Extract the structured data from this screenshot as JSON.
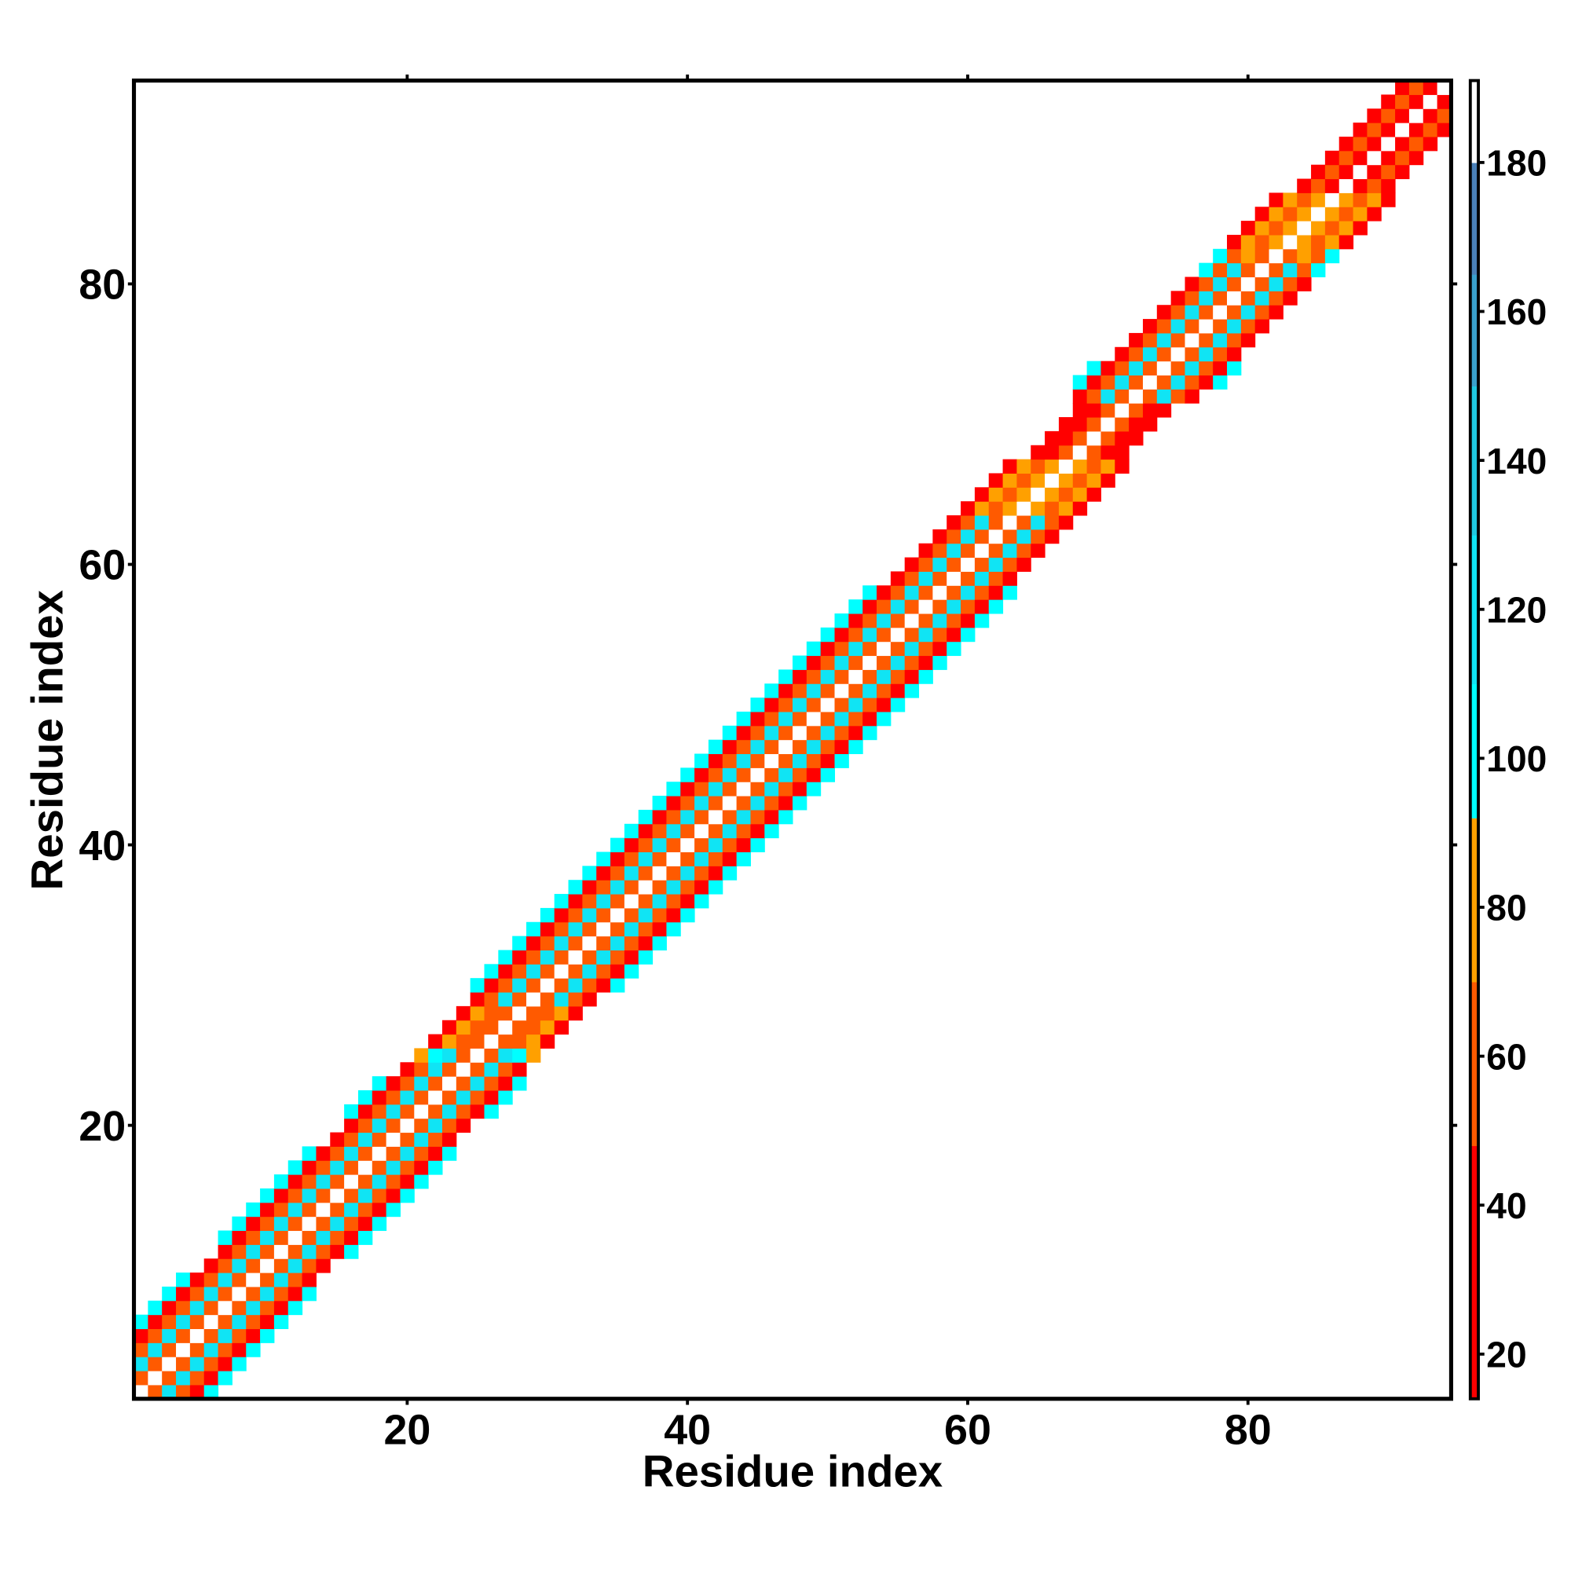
{
  "chart_data": {
    "type": "heatmap",
    "xlabel": "Residue index",
    "ylabel": "Residue index",
    "xlim": [
      0.5,
      94.5
    ],
    "ylim": [
      0.5,
      94.5
    ],
    "xticks": [
      20,
      40,
      60,
      80
    ],
    "yticks": [
      20,
      40,
      60,
      80
    ],
    "zlim": [
      14,
      191
    ],
    "zticks": [
      20,
      40,
      60,
      80,
      100,
      120,
      140,
      160,
      180
    ],
    "colorscale": [
      [
        14,
        "#ff0000"
      ],
      [
        48,
        "#ff5a00"
      ],
      [
        70,
        "#ffa000"
      ],
      [
        92,
        "#00ffff"
      ],
      [
        110,
        "#10e4f4"
      ],
      [
        130,
        "#20c8e0"
      ],
      [
        150,
        "#3aa0cc"
      ],
      [
        165,
        "#4a80b8"
      ],
      [
        180,
        "#ffffff"
      ]
    ],
    "z": [
      [
        null,
        null,
        null,
        null,
        null,
        185,
        55,
        110,
        55,
        30,
        100
      ],
      [
        null,
        null,
        null,
        null,
        55,
        185,
        55,
        110,
        55,
        30,
        100
      ],
      [
        null,
        null,
        null,
        110,
        55,
        185,
        55,
        110,
        55,
        30,
        100
      ],
      [
        null,
        null,
        55,
        110,
        55,
        185,
        55,
        110,
        55,
        30,
        100
      ],
      [
        null,
        30,
        55,
        110,
        55,
        185,
        55,
        110,
        55,
        30,
        100
      ],
      [
        100,
        30,
        55,
        110,
        55,
        185,
        55,
        110,
        55,
        30,
        100
      ],
      [
        100,
        30,
        55,
        110,
        55,
        185,
        55,
        110,
        55,
        30,
        100
      ],
      [
        100,
        30,
        55,
        110,
        55,
        185,
        55,
        110,
        55,
        30,
        100
      ],
      [
        100,
        30,
        55,
        110,
        55,
        185,
        55,
        110,
        55,
        30,
        null
      ],
      [
        null,
        30,
        55,
        110,
        55,
        185,
        55,
        110,
        55,
        30,
        null
      ],
      [
        null,
        30,
        55,
        110,
        55,
        185,
        55,
        110,
        55,
        30,
        100
      ],
      [
        100,
        30,
        55,
        110,
        55,
        185,
        55,
        110,
        55,
        30,
        100
      ],
      [
        100,
        30,
        55,
        110,
        55,
        185,
        55,
        110,
        55,
        30,
        100
      ],
      [
        100,
        30,
        55,
        110,
        55,
        185,
        55,
        110,
        55,
        30,
        100
      ],
      [
        100,
        30,
        55,
        110,
        55,
        185,
        55,
        110,
        55,
        30,
        100
      ],
      [
        100,
        30,
        55,
        110,
        55,
        185,
        55,
        110,
        55,
        30,
        100
      ],
      [
        100,
        30,
        55,
        110,
        55,
        185,
        55,
        110,
        55,
        30,
        100
      ],
      [
        100,
        30,
        55,
        110,
        55,
        185,
        55,
        110,
        55,
        30,
        100
      ],
      [
        null,
        30,
        55,
        110,
        55,
        185,
        55,
        110,
        55,
        30,
        null
      ],
      [
        null,
        30,
        55,
        110,
        55,
        185,
        55,
        110,
        55,
        30,
        null
      ],
      [
        100,
        30,
        55,
        110,
        55,
        185,
        55,
        110,
        55,
        30,
        100
      ],
      [
        100,
        30,
        55,
        110,
        55,
        185,
        55,
        110,
        55,
        30,
        100
      ],
      [
        100,
        30,
        55,
        110,
        55,
        185,
        55,
        110,
        55,
        30,
        100
      ],
      [
        null,
        30,
        55,
        110,
        55,
        185,
        55,
        110,
        55,
        30,
        null
      ],
      [
        null,
        75,
        100,
        110,
        55,
        185,
        55,
        110,
        100,
        75,
        null
      ],
      [
        null,
        30,
        70,
        60,
        55,
        185,
        55,
        60,
        70,
        30,
        null
      ],
      [
        null,
        30,
        70,
        60,
        55,
        185,
        55,
        60,
        70,
        30,
        null
      ],
      [
        null,
        30,
        70,
        60,
        55,
        185,
        55,
        60,
        70,
        30,
        null
      ],
      [
        null,
        30,
        55,
        110,
        55,
        185,
        55,
        110,
        55,
        30,
        null
      ],
      [
        100,
        30,
        55,
        110,
        55,
        185,
        55,
        110,
        55,
        30,
        100
      ],
      [
        100,
        30,
        55,
        110,
        55,
        185,
        55,
        110,
        55,
        30,
        100
      ],
      [
        100,
        30,
        55,
        110,
        55,
        185,
        55,
        110,
        55,
        30,
        100
      ],
      [
        100,
        30,
        55,
        110,
        55,
        185,
        55,
        110,
        55,
        30,
        100
      ],
      [
        100,
        30,
        55,
        110,
        55,
        185,
        55,
        110,
        55,
        30,
        100
      ],
      [
        100,
        30,
        55,
        110,
        55,
        185,
        55,
        110,
        55,
        30,
        100
      ],
      [
        100,
        30,
        55,
        110,
        55,
        185,
        55,
        110,
        55,
        30,
        100
      ],
      [
        100,
        30,
        55,
        110,
        55,
        185,
        55,
        110,
        55,
        30,
        100
      ],
      [
        100,
        30,
        55,
        110,
        55,
        185,
        55,
        110,
        55,
        30,
        100
      ],
      [
        100,
        30,
        55,
        110,
        55,
        185,
        55,
        110,
        55,
        30,
        100
      ],
      [
        100,
        30,
        55,
        110,
        55,
        185,
        55,
        110,
        55,
        30,
        100
      ],
      [
        100,
        30,
        55,
        110,
        55,
        185,
        55,
        110,
        55,
        30,
        100
      ],
      [
        100,
        30,
        55,
        110,
        55,
        185,
        55,
        110,
        55,
        30,
        100
      ],
      [
        100,
        30,
        55,
        110,
        55,
        185,
        55,
        110,
        55,
        30,
        100
      ],
      [
        100,
        30,
        55,
        110,
        55,
        185,
        55,
        110,
        55,
        30,
        100
      ],
      [
        100,
        30,
        55,
        110,
        55,
        185,
        55,
        110,
        55,
        30,
        100
      ],
      [
        100,
        30,
        55,
        110,
        55,
        185,
        55,
        110,
        55,
        30,
        100
      ],
      [
        100,
        30,
        55,
        110,
        55,
        185,
        55,
        110,
        55,
        30,
        100
      ],
      [
        100,
        30,
        55,
        110,
        55,
        185,
        55,
        110,
        55,
        30,
        100
      ],
      [
        100,
        30,
        55,
        110,
        55,
        185,
        55,
        110,
        55,
        30,
        100
      ],
      [
        100,
        30,
        55,
        110,
        55,
        185,
        55,
        110,
        55,
        30,
        100
      ],
      [
        100,
        30,
        55,
        110,
        55,
        185,
        55,
        110,
        55,
        30,
        100
      ],
      [
        100,
        30,
        55,
        110,
        55,
        185,
        55,
        110,
        55,
        30,
        100
      ],
      [
        100,
        30,
        55,
        110,
        55,
        185,
        55,
        110,
        55,
        30,
        100
      ],
      [
        100,
        30,
        55,
        110,
        55,
        185,
        55,
        110,
        55,
        30,
        100
      ],
      [
        100,
        30,
        55,
        110,
        55,
        185,
        55,
        110,
        55,
        30,
        100
      ],
      [
        100,
        30,
        55,
        110,
        55,
        185,
        55,
        110,
        55,
        30,
        100
      ],
      [
        100,
        30,
        55,
        110,
        55,
        185,
        55,
        110,
        55,
        30,
        100
      ],
      [
        100,
        30,
        55,
        110,
        55,
        185,
        55,
        110,
        55,
        30,
        100
      ],
      [
        null,
        30,
        55,
        110,
        55,
        185,
        55,
        110,
        55,
        30,
        null
      ],
      [
        null,
        30,
        55,
        110,
        55,
        185,
        55,
        110,
        55,
        30,
        null
      ],
      [
        null,
        30,
        55,
        110,
        55,
        185,
        55,
        110,
        55,
        30,
        null
      ],
      [
        null,
        30,
        55,
        110,
        55,
        185,
        55,
        110,
        55,
        30,
        null
      ],
      [
        null,
        30,
        55,
        110,
        55,
        185,
        55,
        110,
        55,
        30,
        null
      ],
      [
        null,
        30,
        75,
        60,
        70,
        185,
        70,
        60,
        75,
        30,
        null
      ],
      [
        null,
        30,
        75,
        60,
        70,
        185,
        70,
        60,
        75,
        30,
        null
      ],
      [
        null,
        30,
        75,
        60,
        70,
        185,
        70,
        60,
        75,
        30,
        null
      ],
      [
        null,
        30,
        75,
        60,
        70,
        185,
        70,
        60,
        75,
        30,
        null
      ],
      [
        null,
        null,
        30,
        30,
        55,
        185,
        55,
        30,
        30,
        null,
        null
      ],
      [
        null,
        null,
        30,
        30,
        55,
        185,
        55,
        30,
        30,
        null,
        null
      ],
      [
        null,
        null,
        30,
        30,
        55,
        185,
        55,
        30,
        30,
        null,
        null
      ],
      [
        null,
        null,
        30,
        30,
        55,
        185,
        55,
        30,
        30,
        null,
        null
      ],
      [
        null,
        30,
        55,
        110,
        55,
        185,
        55,
        110,
        55,
        30,
        null
      ],
      [
        100,
        30,
        55,
        110,
        55,
        185,
        55,
        110,
        55,
        30,
        100
      ],
      [
        100,
        30,
        55,
        110,
        55,
        185,
        55,
        110,
        55,
        30,
        100
      ],
      [
        null,
        30,
        55,
        110,
        55,
        185,
        55,
        110,
        55,
        30,
        null
      ],
      [
        null,
        30,
        55,
        110,
        55,
        185,
        55,
        110,
        55,
        30,
        null
      ],
      [
        null,
        30,
        55,
        110,
        55,
        185,
        55,
        110,
        55,
        30,
        null
      ],
      [
        null,
        30,
        55,
        110,
        55,
        185,
        55,
        110,
        55,
        30,
        null
      ],
      [
        null,
        30,
        55,
        110,
        55,
        185,
        55,
        110,
        55,
        30,
        null
      ],
      [
        null,
        30,
        55,
        110,
        55,
        185,
        55,
        110,
        55,
        30,
        null
      ],
      [
        null,
        100,
        55,
        110,
        55,
        185,
        55,
        110,
        55,
        100,
        null
      ],
      [
        null,
        100,
        55,
        75,
        55,
        185,
        55,
        75,
        55,
        100,
        null
      ],
      [
        null,
        30,
        75,
        60,
        70,
        185,
        70,
        60,
        75,
        30,
        null
      ],
      [
        null,
        30,
        75,
        60,
        70,
        185,
        70,
        60,
        75,
        30,
        null
      ],
      [
        null,
        30,
        75,
        60,
        70,
        185,
        70,
        60,
        75,
        30,
        null
      ],
      [
        null,
        30,
        75,
        60,
        70,
        185,
        70,
        60,
        75,
        30,
        null
      ],
      [
        null,
        null,
        30,
        55,
        30,
        185,
        30,
        55,
        30,
        null,
        null
      ],
      [
        null,
        null,
        30,
        55,
        30,
        185,
        30,
        55,
        30,
        null,
        null
      ],
      [
        null,
        null,
        30,
        55,
        30,
        185,
        30,
        55,
        30,
        null,
        null
      ],
      [
        null,
        null,
        30,
        55,
        30,
        185,
        30,
        55,
        30,
        null,
        null
      ],
      [
        null,
        null,
        30,
        55,
        30,
        185,
        30,
        55,
        30,
        null,
        null
      ],
      [
        null,
        null,
        30,
        55,
        30,
        185,
        30,
        55,
        null,
        null,
        null
      ],
      [
        null,
        null,
        30,
        55,
        30,
        185,
        30,
        null,
        null,
        null,
        null
      ],
      [
        null,
        null,
        30,
        55,
        30,
        185,
        null,
        null,
        null,
        null,
        null
      ]
    ]
  }
}
